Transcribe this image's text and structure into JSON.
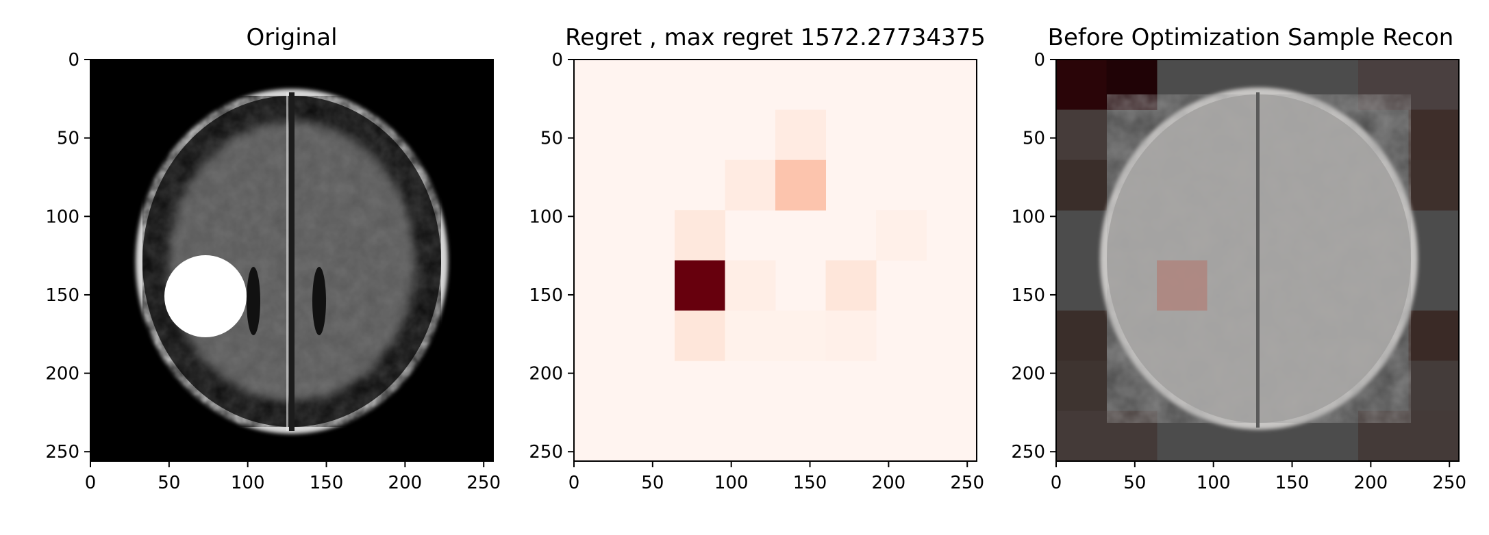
{
  "chart_data": [
    {
      "type": "image",
      "title": "Original",
      "xlim": [
        0,
        256
      ],
      "ylim": [
        256,
        0
      ],
      "xticks": [
        0,
        50,
        100,
        150,
        200,
        250
      ],
      "yticks": [
        0,
        50,
        100,
        150,
        200,
        250
      ],
      "background_color": "#000000",
      "content": {
        "subject": "axial brain MRI slice, grayscale",
        "white_disk_mask": {
          "center": [
            73,
            148
          ],
          "radius": 26,
          "color": "#ffffff"
        }
      }
    },
    {
      "type": "heatmap",
      "title": "Regret , max regret 1572.27734375",
      "colormap": "Reds",
      "xlim": [
        0,
        256
      ],
      "ylim": [
        256,
        0
      ],
      "xticks": [
        0,
        50,
        100,
        150,
        200,
        250
      ],
      "yticks": [
        0,
        50,
        100,
        150,
        200,
        250
      ],
      "grid_cell_size": 32,
      "max_regret": 1572.27734375,
      "cells": [
        {
          "row": 1,
          "col": 4,
          "value": 0.06
        },
        {
          "row": 2,
          "col": 3,
          "value": 0.06
        },
        {
          "row": 2,
          "col": 4,
          "value": 0.22
        },
        {
          "row": 3,
          "col": 2,
          "value": 0.08
        },
        {
          "row": 3,
          "col": 6,
          "value": 0.03
        },
        {
          "row": 4,
          "col": 2,
          "value": 1.0
        },
        {
          "row": 4,
          "col": 3,
          "value": 0.04
        },
        {
          "row": 4,
          "col": 5,
          "value": 0.09
        },
        {
          "row": 5,
          "col": 2,
          "value": 0.09
        },
        {
          "row": 5,
          "col": 3,
          "value": 0.02
        },
        {
          "row": 5,
          "col": 4,
          "value": 0.02
        },
        {
          "row": 5,
          "col": 5,
          "value": 0.03
        }
      ]
    },
    {
      "type": "image",
      "title": "Before Optimization Sample Recon",
      "xlim": [
        0,
        256
      ],
      "ylim": [
        256,
        0
      ],
      "xticks": [
        0,
        50,
        100,
        150,
        200,
        250
      ],
      "yticks": [
        0,
        50,
        100,
        150,
        200,
        250
      ],
      "content": {
        "subject": "reconstructed brain MRI slice with patch-wise overlay tint",
        "highlighted_patch": {
          "row": 4,
          "col": 2,
          "color": "#b08078"
        }
      }
    }
  ]
}
